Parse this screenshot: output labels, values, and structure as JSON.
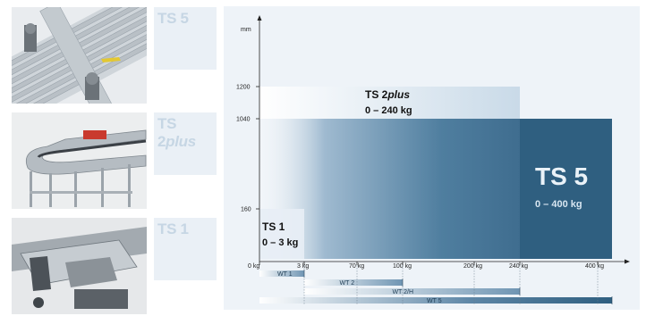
{
  "photos": [
    {
      "product": "TS 5",
      "label": "TS 5"
    },
    {
      "product": "TS 2plus",
      "label_main": "TS 2",
      "label_italic": "plus"
    },
    {
      "product": "TS 1",
      "label": "TS 1"
    }
  ],
  "diagram": {
    "y_unit": "mm",
    "y_ticks": [
      "1200",
      "1040",
      "160"
    ],
    "x_ticks": [
      "0 kg",
      "3 kg",
      "70 kg",
      "100 kg",
      "200 kg",
      "240 kg",
      "400 kg"
    ],
    "systems": [
      {
        "name": "TS 5",
        "range": "0 – 400 kg",
        "max_width_mm": 1040,
        "max_load_kg": 400
      },
      {
        "name_main": "TS 2",
        "name_italic": "plus",
        "range": "0 – 240 kg",
        "max_width_mm": 1200,
        "max_load_kg": 240
      },
      {
        "name": "TS 1",
        "range": "0 – 3 kg",
        "max_width_mm": 160,
        "max_load_kg": 3
      }
    ],
    "workpiece_pallets": [
      {
        "name": "WT 1",
        "min_kg": 0,
        "max_kg": 3
      },
      {
        "name": "WT 2",
        "min_kg": 3,
        "max_kg": 100
      },
      {
        "name": "WT 2/H",
        "min_kg": 3,
        "max_kg": 240
      },
      {
        "name": "WT 5",
        "min_kg": 0,
        "max_kg": 400
      }
    ],
    "colors": {
      "ts5": "#2f5f80",
      "ts2plus": "#b8cfe0",
      "ts1": "#dde8f1",
      "panel": "#eef3f8"
    }
  }
}
